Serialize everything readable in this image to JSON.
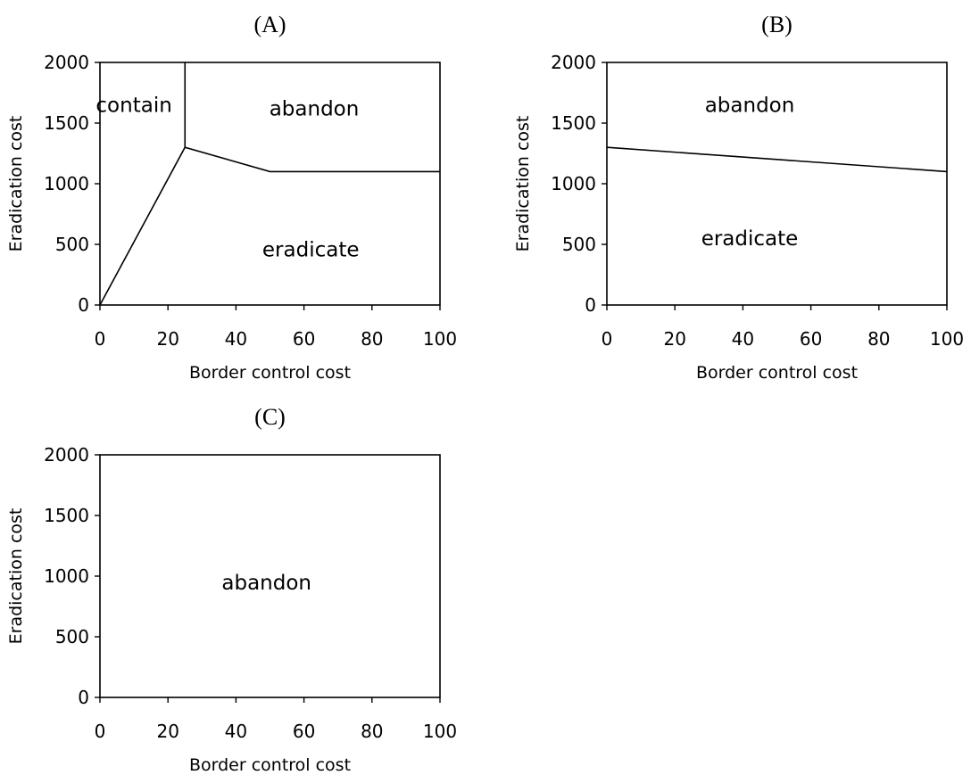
{
  "chart_data": [
    {
      "type": "line",
      "title": "(A)",
      "xlabel": "Border control cost",
      "ylabel": "Eradication cost",
      "xlim": [
        0,
        100
      ],
      "ylim": [
        0,
        2000
      ],
      "xticks": [
        0,
        20,
        40,
        60,
        80,
        100
      ],
      "yticks": [
        0,
        500,
        1000,
        1500,
        2000
      ],
      "grid": false,
      "series": [
        {
          "x": [
            0,
            25,
            50,
            100
          ],
          "y": [
            0,
            1300,
            1100,
            1100
          ]
        },
        {
          "x": [
            25,
            25
          ],
          "y": [
            1300,
            2000
          ]
        }
      ],
      "regions": [
        {
          "label": "contain",
          "x": 10,
          "y": 1650
        },
        {
          "label": "abandon",
          "x": 63,
          "y": 1620
        },
        {
          "label": "eradicate",
          "x": 62,
          "y": 460
        }
      ]
    },
    {
      "type": "line",
      "title": "(B)",
      "xlabel": "Border control cost",
      "ylabel": "Eradication cost",
      "xlim": [
        0,
        100
      ],
      "ylim": [
        0,
        2000
      ],
      "xticks": [
        0,
        20,
        40,
        60,
        80,
        100
      ],
      "yticks": [
        0,
        500,
        1000,
        1500,
        2000
      ],
      "grid": false,
      "series": [
        {
          "x": [
            0,
            100
          ],
          "y": [
            1300,
            1100
          ]
        }
      ],
      "regions": [
        {
          "label": "abandon",
          "x": 42,
          "y": 1650
        },
        {
          "label": "eradicate",
          "x": 42,
          "y": 550
        }
      ]
    },
    {
      "type": "line",
      "title": "(C)",
      "xlabel": "Border control cost",
      "ylabel": "Eradication cost",
      "xlim": [
        0,
        100
      ],
      "ylim": [
        0,
        2000
      ],
      "xticks": [
        0,
        20,
        40,
        60,
        80,
        100
      ],
      "yticks": [
        0,
        500,
        1000,
        1500,
        2000
      ],
      "grid": false,
      "series": [],
      "regions": [
        {
          "label": "abandon",
          "x": 49,
          "y": 950
        }
      ]
    }
  ]
}
